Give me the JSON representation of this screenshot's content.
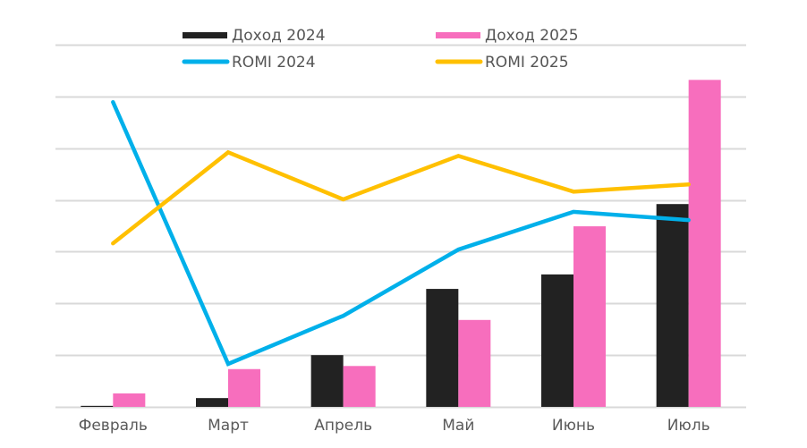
{
  "chart_data": {
    "type": "bar+line",
    "title": "",
    "xlabel": "",
    "ylabel": "",
    "ylim": [
      0,
      7
    ],
    "grid": true,
    "y_ticks_shown": false,
    "legend_position": "top",
    "categories": [
      "Февраль",
      "Март",
      "Апрель",
      "Май",
      "Июнь",
      "Июль"
    ],
    "series": [
      {
        "name": "Доход 2024",
        "type": "bar",
        "color": "#222222",
        "values": [
          0.02,
          0.17,
          1.0,
          2.28,
          2.56,
          3.92
        ]
      },
      {
        "name": "Доход 2025",
        "type": "bar",
        "color": "#f76ebd",
        "values": [
          0.26,
          0.73,
          0.79,
          1.68,
          3.49,
          6.32
        ]
      },
      {
        "name": "ROMI 2024",
        "type": "line",
        "color": "#00b0ea",
        "values": [
          5.89,
          0.83,
          1.76,
          3.04,
          3.77,
          3.61
        ]
      },
      {
        "name": "ROMI 2025",
        "type": "line",
        "color": "#ffc000",
        "values": [
          3.16,
          4.92,
          4.01,
          4.85,
          4.16,
          4.3
        ]
      }
    ],
    "legend": [
      {
        "label": "Доход 2024",
        "marker": "bar",
        "color": "#222222"
      },
      {
        "label": "Доход 2025",
        "marker": "bar",
        "color": "#f76ebd"
      },
      {
        "label": "ROMI 2024",
        "marker": "line",
        "color": "#00b0ea"
      },
      {
        "label": "ROMI 2025",
        "marker": "line",
        "color": "#ffc000"
      }
    ],
    "gridline_color": "#d9d9d9"
  }
}
